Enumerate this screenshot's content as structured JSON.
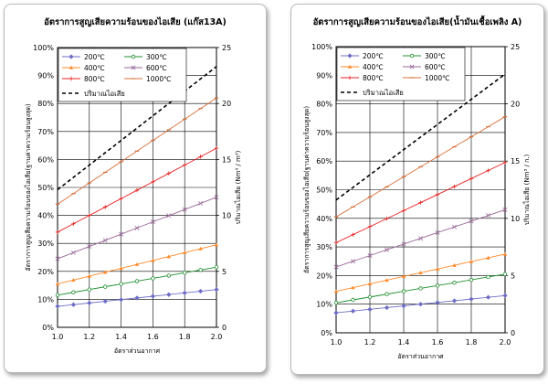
{
  "chart_data": [
    {
      "type": "line",
      "title": "อัตราการสูญเสียความร้อนของไอเสีย (แก๊ส13A)",
      "xlabel": "อัตราส่วนอากาศ",
      "ylabel": "อัตราการสูญเสียความร้อนของไอเสีย(ฐานค่าความร้อนสูงสุด)",
      "y2label": "ปริมาณไอเสีย (Nm³ / m³)",
      "x": [
        1.0,
        1.1,
        1.2,
        1.3,
        1.4,
        1.5,
        1.6,
        1.7,
        1.8,
        1.9,
        2.0
      ],
      "xticks": [
        "1.0",
        "1.2",
        "1.4",
        "1.6",
        "1.8",
        "2.0"
      ],
      "xlim": [
        1.0,
        2.0
      ],
      "ylim": [
        0,
        100
      ],
      "yticks": [
        "0%",
        "10%",
        "20%",
        "30%",
        "40%",
        "50%",
        "60%",
        "70%",
        "80%",
        "90%",
        "100%"
      ],
      "y2lim": [
        0,
        25
      ],
      "y2ticks": [
        "0",
        "5",
        "10",
        "15",
        "20",
        "25"
      ],
      "grid": true,
      "legend_position": "top-left",
      "series": [
        {
          "name": "200℃",
          "color": "#6d6dc6",
          "marker": "diamond",
          "axis": "left",
          "values": [
            7.5,
            8.1,
            8.7,
            9.3,
            9.9,
            10.5,
            11.1,
            11.7,
            12.3,
            12.9,
            13.5
          ]
        },
        {
          "name": "300℃",
          "color": "#1f8f2f",
          "marker": "circle",
          "axis": "left",
          "values": [
            11.5,
            12.5,
            13.5,
            14.5,
            15.5,
            16.5,
            17.5,
            18.5,
            19.5,
            20.5,
            21.5
          ]
        },
        {
          "name": "400℃",
          "color": "#ff8a2a",
          "marker": "triangle",
          "axis": "left",
          "values": [
            15.5,
            16.9,
            18.3,
            19.7,
            21.1,
            22.5,
            23.9,
            25.3,
            26.7,
            28.1,
            29.5
          ]
        },
        {
          "name": "600℃",
          "color": "#9a6a9a",
          "marker": "x",
          "axis": "left",
          "values": [
            24.5,
            26.7,
            28.9,
            31.1,
            33.3,
            35.5,
            37.7,
            39.9,
            42.1,
            44.3,
            46.5
          ]
        },
        {
          "name": "800℃",
          "color": "#e82020",
          "marker": "plus",
          "axis": "left",
          "values": [
            34.0,
            37.0,
            40.0,
            43.0,
            46.0,
            49.0,
            52.0,
            55.0,
            58.0,
            61.0,
            64.0
          ]
        },
        {
          "name": "1000℃",
          "color": "#d8703a",
          "marker": "dash",
          "axis": "left",
          "values": [
            44.0,
            47.8,
            51.6,
            55.4,
            59.2,
            63.0,
            66.8,
            70.6,
            74.4,
            78.2,
            82.0
          ]
        },
        {
          "name": "ปริมาณไอเสีย",
          "color": "#000000",
          "marker": "none",
          "dashed": true,
          "axis": "right",
          "values": [
            12.3,
            13.4,
            14.5,
            15.6,
            16.7,
            17.8,
            18.9,
            20.0,
            21.1,
            22.2,
            23.3
          ]
        }
      ]
    },
    {
      "type": "line",
      "title": "อัตราการสูญเสียความร้อนของไอเสีย(น้ำมันเชื้อเพลิง A)",
      "xlabel": "อัตราส่วนอากาศ",
      "ylabel": "อัตราการสูญเสียความร้อนของไอเสีย(ฐานค่าความร้อนสูงสุด)",
      "y2label": "ปริมาณไอเสีย (Nm³ / ก.)",
      "x": [
        1.0,
        1.1,
        1.2,
        1.3,
        1.4,
        1.5,
        1.6,
        1.7,
        1.8,
        1.9,
        2.0
      ],
      "xticks": [
        "1.0",
        "1.2",
        "1.4",
        "1.6",
        "1.8",
        "2.0"
      ],
      "xlim": [
        1.0,
        2.0
      ],
      "ylim": [
        0,
        100
      ],
      "yticks": [
        "0%",
        "10%",
        "20%",
        "30%",
        "40%",
        "50%",
        "60%",
        "70%",
        "80%",
        "90%",
        "100%"
      ],
      "y2lim": [
        0,
        25
      ],
      "y2ticks": [
        "0",
        "5",
        "10",
        "15",
        "20",
        "25"
      ],
      "grid": true,
      "legend_position": "top-left",
      "series": [
        {
          "name": "200℃",
          "color": "#6d6dc6",
          "marker": "diamond",
          "axis": "left",
          "values": [
            7.0,
            7.6,
            8.2,
            8.8,
            9.4,
            10.0,
            10.6,
            11.2,
            11.8,
            12.4,
            13.0
          ]
        },
        {
          "name": "300℃",
          "color": "#1f8f2f",
          "marker": "circle",
          "axis": "left",
          "values": [
            10.5,
            11.5,
            12.5,
            13.5,
            14.5,
            15.5,
            16.5,
            17.5,
            18.5,
            19.5,
            20.5
          ]
        },
        {
          "name": "400℃",
          "color": "#ff8a2a",
          "marker": "triangle",
          "axis": "left",
          "values": [
            14.5,
            15.8,
            17.1,
            18.4,
            19.7,
            21.0,
            22.3,
            23.6,
            24.9,
            26.2,
            27.5
          ]
        },
        {
          "name": "600℃",
          "color": "#9a6a9a",
          "marker": "x",
          "axis": "left",
          "values": [
            23.0,
            25.0,
            27.0,
            29.0,
            31.0,
            33.0,
            35.0,
            37.0,
            39.0,
            41.0,
            43.0
          ]
        },
        {
          "name": "800℃",
          "color": "#e82020",
          "marker": "plus",
          "axis": "left",
          "values": [
            31.5,
            34.3,
            37.1,
            39.9,
            42.7,
            45.5,
            48.3,
            51.1,
            53.9,
            56.7,
            59.5
          ]
        },
        {
          "name": "1000℃",
          "color": "#d8703a",
          "marker": "dash",
          "axis": "left",
          "values": [
            40.5,
            44.0,
            47.5,
            51.0,
            54.5,
            58.0,
            61.5,
            65.0,
            68.5,
            72.0,
            75.5
          ]
        },
        {
          "name": "ปริมาณไอเสีย",
          "color": "#000000",
          "marker": "none",
          "dashed": true,
          "axis": "right",
          "values": [
            11.6,
            12.7,
            13.8,
            14.9,
            16.0,
            17.1,
            18.2,
            19.3,
            20.4,
            21.5,
            22.6
          ]
        }
      ]
    }
  ]
}
